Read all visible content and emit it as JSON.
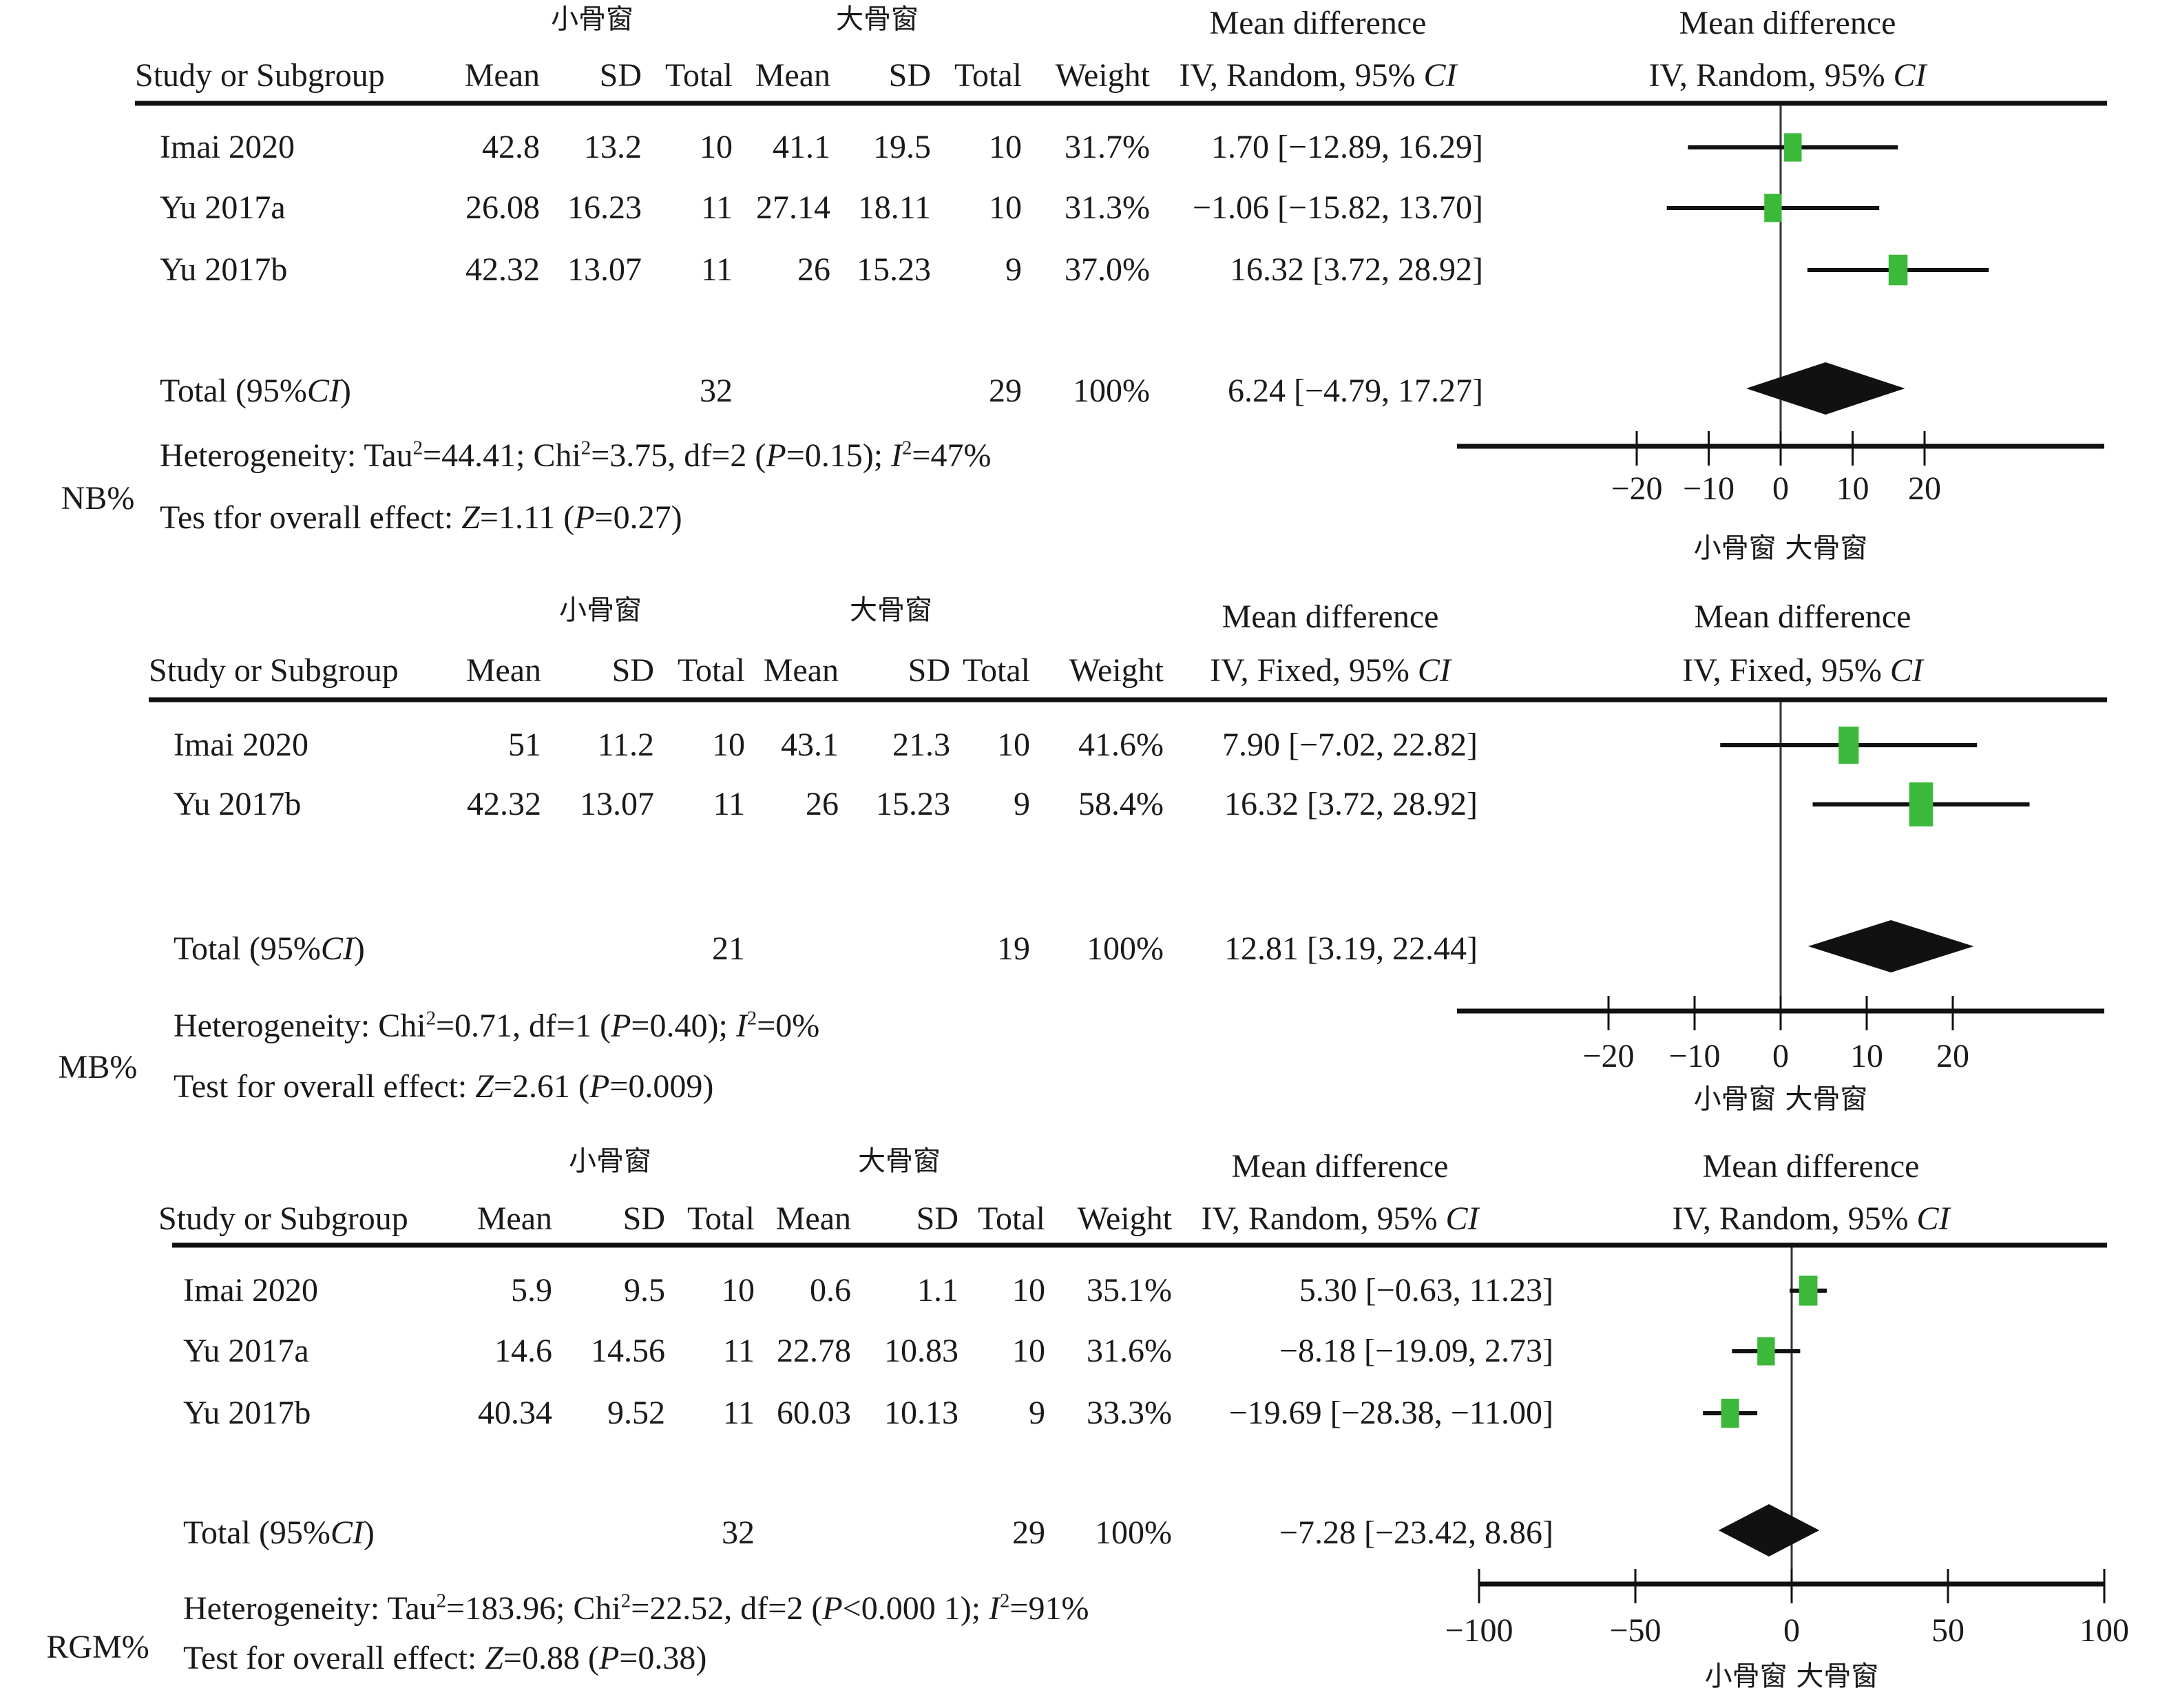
{
  "figure": {
    "panels": [
      {
        "id": "nb",
        "outcome_label": "NB%",
        "group_headers": {
          "experimental": "小骨窗",
          "control": "大骨窗"
        },
        "column_headers": {
          "study": "Study or Subgroup",
          "mean1": "Mean",
          "sd1": "SD",
          "total1": "Total",
          "mean2": "Mean",
          "sd2": "SD",
          "total2": "Total",
          "weight": "Weight",
          "md_title": "Mean difference",
          "md_method": "IV, Random, 95% ",
          "plot_title": "Mean difference",
          "plot_method": "IV, Random, 95% ",
          "ci_italic": "CI"
        },
        "rows": [
          {
            "study": "Imai 2020",
            "mean1": "42.8",
            "sd1": "13.2",
            "total1": "10",
            "mean2": "41.1",
            "sd2": "19.5",
            "total2": "10",
            "weight": "31.7%",
            "ci_text": "1.70 [−12.89, 16.29]"
          },
          {
            "study": "Yu 2017a",
            "mean1": "26.08",
            "sd1": "16.23",
            "total1": "11",
            "mean2": "27.14",
            "sd2": "18.11",
            "total2": "10",
            "weight": "31.3%",
            "ci_text": "−1.06 [−15.82, 13.70]"
          },
          {
            "study": "Yu 2017b",
            "mean1": "42.32",
            "sd1": "13.07",
            "total1": "11",
            "mean2": "26",
            "sd2": "15.23",
            "total2": "9",
            "weight": "37.0%",
            "ci_text": "16.32 [3.72, 28.92]"
          }
        ],
        "total": {
          "label_pre": "Total (95%",
          "label_ci": "CI",
          "label_post": ")",
          "total1": "32",
          "total2": "29",
          "weight": "100%",
          "ci_text": "6.24 [−4.79, 17.27]"
        },
        "heterogeneity": {
          "prefix": "Heterogeneity: Tau",
          "tau2": "=44.41; Chi",
          "chi2": "=3.75, df=2 (",
          "p": "P",
          "p_val": "=0.15); ",
          "i": "I",
          "i2": "=47%"
        },
        "overall_effect": {
          "prefix": "Tes tfor overall effect: ",
          "z": "Z",
          "z_val": "=1.11 (",
          "p": "P",
          "p_val": "=0.27)"
        },
        "axis_ticks": [
          "−20",
          "−10",
          "0",
          "10",
          "20"
        ],
        "axis_label": "小骨窗 大骨窗"
      },
      {
        "id": "mb",
        "outcome_label": "MB%",
        "group_headers": {
          "experimental": "小骨窗",
          "control": "大骨窗"
        },
        "column_headers": {
          "study": "Study or Subgroup",
          "mean1": "Mean",
          "sd1": "SD",
          "total1": "Total",
          "mean2": "Mean",
          "sd2": "SD",
          "total2": "Total",
          "weight": "Weight",
          "md_title": "Mean difference",
          "md_method": "IV, Fixed, 95% ",
          "plot_title": "Mean difference",
          "plot_method": "IV, Fixed, 95% ",
          "ci_italic": "CI"
        },
        "rows": [
          {
            "study": "Imai 2020",
            "mean1": "51",
            "sd1": "11.2",
            "total1": "10",
            "mean2": "43.1",
            "sd2": "21.3",
            "total2": "10",
            "weight": "41.6%",
            "ci_text": "7.90 [−7.02, 22.82]"
          },
          {
            "study": "Yu 2017b",
            "mean1": "42.32",
            "sd1": "13.07",
            "total1": "11",
            "mean2": "26",
            "sd2": "15.23",
            "total2": "9",
            "weight": "58.4%",
            "ci_text": "16.32 [3.72, 28.92]"
          }
        ],
        "total": {
          "label_pre": "Total (95%",
          "label_ci": "CI",
          "label_post": ")",
          "total1": "21",
          "total2": "19",
          "weight": "100%",
          "ci_text": "12.81 [3.19, 22.44]"
        },
        "heterogeneity": {
          "prefix": "Heterogeneity: ",
          "tau2": "",
          "chi2_prefix": "Chi",
          "chi2": "=0.71, df=1 (",
          "p": "P",
          "p_val": "=0.40); ",
          "i": "I",
          "i2": "=0%"
        },
        "overall_effect": {
          "prefix": "Test for overall effect: ",
          "z": "Z",
          "z_val": "=2.61 (",
          "p": "P",
          "p_val": "=0.009)"
        },
        "axis_ticks": [
          "−20",
          "−10",
          "0",
          "10",
          "20"
        ],
        "axis_label": "小骨窗 大骨窗"
      },
      {
        "id": "rgm",
        "outcome_label": "RGM%",
        "group_headers": {
          "experimental": "小骨窗",
          "control": "大骨窗"
        },
        "column_headers": {
          "study": "Study or Subgroup",
          "mean1": "Mean",
          "sd1": "SD",
          "total1": "Total",
          "mean2": "Mean",
          "sd2": "SD",
          "total2": "Total",
          "weight": "Weight",
          "md_title": "Mean difference",
          "md_method": "IV, Random, 95% ",
          "plot_title": "Mean difference",
          "plot_method": "IV, Random, 95% ",
          "ci_italic": "CI"
        },
        "rows": [
          {
            "study": "Imai 2020",
            "mean1": "5.9",
            "sd1": "9.5",
            "total1": "10",
            "mean2": "0.6",
            "sd2": "1.1",
            "total2": "10",
            "weight": "35.1%",
            "ci_text": "5.30 [−0.63, 11.23]"
          },
          {
            "study": "Yu 2017a",
            "mean1": "14.6",
            "sd1": "14.56",
            "total1": "11",
            "mean2": "22.78",
            "sd2": "10.83",
            "total2": "10",
            "weight": "31.6%",
            "ci_text": "−8.18 [−19.09, 2.73]"
          },
          {
            "study": "Yu 2017b",
            "mean1": "40.34",
            "sd1": "9.52",
            "total1": "11",
            "mean2": "60.03",
            "sd2": "10.13",
            "total2": "9",
            "weight": "33.3%",
            "ci_text": "−19.69 [−28.38, −11.00]"
          }
        ],
        "total": {
          "label_pre": "Total (95%",
          "label_ci": "CI",
          "label_post": ")",
          "total1": "32",
          "total2": "29",
          "weight": "100%",
          "ci_text": "−7.28 [−23.42, 8.86]"
        },
        "heterogeneity": {
          "prefix": "Heterogeneity: Tau",
          "tau2": "=183.96; Chi",
          "chi2": "=22.52, df=2 (",
          "p": "P",
          "p_val": "<0.000 1); ",
          "i": "I",
          "i2": "=91%"
        },
        "overall_effect": {
          "prefix": "Test for overall effect: ",
          "z": "Z",
          "z_val": "=0.88 (",
          "p": "P",
          "p_val": "=0.38)"
        },
        "axis_ticks": [
          "−100",
          "−50",
          "0",
          "50",
          "100"
        ],
        "axis_label": "小骨窗 大骨窗"
      }
    ],
    "colors": {
      "study_marker": "#3cb83a",
      "pooled_diamond": "#111111",
      "lines": "#1a1a1a"
    }
  },
  "chart_data": [
    {
      "type": "forest",
      "title": "NB%",
      "xlabel": "小骨窗 大骨窗",
      "effect_measure": "Mean difference, IV, Random, 95% CI",
      "xlim": [
        -30,
        45
      ],
      "xticks": [
        -20,
        -10,
        0,
        10,
        20
      ],
      "studies": [
        {
          "name": "Imai 2020",
          "md": 1.7,
          "lower": -12.89,
          "upper": 16.29,
          "weight": 31.7
        },
        {
          "name": "Yu 2017a",
          "md": -1.06,
          "lower": -15.82,
          "upper": 13.7,
          "weight": 31.3
        },
        {
          "name": "Yu 2017b",
          "md": 16.32,
          "lower": 3.72,
          "upper": 28.92,
          "weight": 37.0
        }
      ],
      "pooled": {
        "md": 6.24,
        "lower": -4.79,
        "upper": 17.27
      },
      "heterogeneity": {
        "tau2": 44.41,
        "chi2": 3.75,
        "df": 2,
        "p": 0.15,
        "i2": 47
      },
      "overall_effect": {
        "z": 1.11,
        "p": 0.27
      }
    },
    {
      "type": "forest",
      "title": "MB%",
      "xlabel": "小骨窗 大骨窗",
      "effect_measure": "Mean difference, IV, Fixed, 95% CI",
      "xlim": [
        -37,
        39
      ],
      "xticks": [
        -20,
        -10,
        0,
        10,
        20
      ],
      "studies": [
        {
          "name": "Imai 2020",
          "md": 7.9,
          "lower": -7.02,
          "upper": 22.82,
          "weight": 41.6
        },
        {
          "name": "Yu 2017b",
          "md": 16.32,
          "lower": 3.72,
          "upper": 28.92,
          "weight": 58.4
        }
      ],
      "pooled": {
        "md": 12.81,
        "lower": 3.19,
        "upper": 22.44
      },
      "heterogeneity": {
        "chi2": 0.71,
        "df": 1,
        "p": 0.4,
        "i2": 0
      },
      "overall_effect": {
        "z": 2.61,
        "p": 0.009
      }
    },
    {
      "type": "forest",
      "title": "RGM%",
      "xlabel": "小骨窗 大骨窗",
      "effect_measure": "Mean difference, IV, Random, 95% CI",
      "xlim": [
        -100,
        100
      ],
      "xticks": [
        -100,
        -50,
        0,
        50,
        100
      ],
      "studies": [
        {
          "name": "Imai 2020",
          "md": 5.3,
          "lower": -0.63,
          "upper": 11.23,
          "weight": 35.1
        },
        {
          "name": "Yu 2017a",
          "md": -8.18,
          "lower": -19.09,
          "upper": 2.73,
          "weight": 31.6
        },
        {
          "name": "Yu 2017b",
          "md": -19.69,
          "lower": -28.38,
          "upper": -11.0,
          "weight": 33.3
        }
      ],
      "pooled": {
        "md": -7.28,
        "lower": -23.42,
        "upper": 8.86
      },
      "heterogeneity": {
        "tau2": 183.96,
        "chi2": 22.52,
        "df": 2,
        "p": "<0.0001",
        "i2": 91
      },
      "overall_effect": {
        "z": 0.88,
        "p": 0.38
      }
    }
  ]
}
